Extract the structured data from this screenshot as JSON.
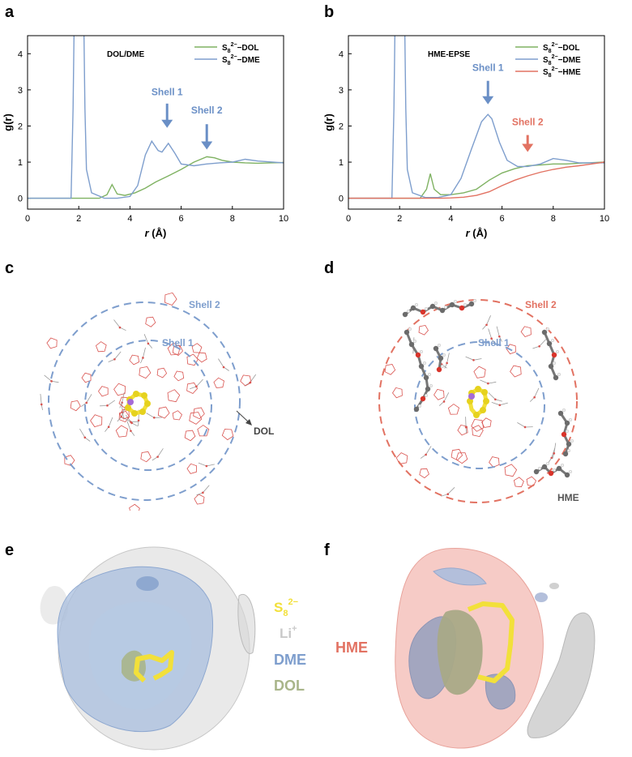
{
  "panel_labels": [
    "a",
    "b",
    "c",
    "d",
    "e",
    "f"
  ],
  "chart_data": [
    {
      "type": "line",
      "panel": "a",
      "inset_label": "DOL/DME",
      "xlabel_italic": "r",
      "xlabel_unit": "(Å)",
      "ylabel": "g(r)",
      "xlim": [
        0,
        10
      ],
      "ylim": [
        -0.3,
        4.5
      ],
      "xticks": [
        0,
        2,
        4,
        6,
        8,
        10
      ],
      "yticks": [
        0,
        1,
        2,
        3,
        4
      ],
      "legend_position": "top-right",
      "series": [
        {
          "name": "S8 2− −DOL",
          "legend_base": "S",
          "legend_sub": "8",
          "legend_sup": "2−",
          "legend_tail": "−DOL",
          "color": "#7fb262",
          "x": [
            0,
            2.8,
            3.1,
            3.3,
            3.5,
            3.8,
            4.2,
            4.6,
            5.0,
            5.5,
            6.0,
            6.5,
            7.0,
            7.3,
            7.6,
            8.0,
            8.5,
            9.0,
            9.5,
            10.0
          ],
          "y": [
            0,
            0,
            0.1,
            0.38,
            0.12,
            0.08,
            0.15,
            0.28,
            0.45,
            0.62,
            0.8,
            1.0,
            1.15,
            1.12,
            1.05,
            1.0,
            0.98,
            0.97,
            0.98,
            0.99
          ]
        },
        {
          "name": "S8 2− −DME",
          "legend_base": "S",
          "legend_sub": "8",
          "legend_sup": "2−",
          "legend_tail": "−DME",
          "color": "#7e9ecd",
          "x": [
            0,
            1.7,
            1.78,
            1.82,
            2.2,
            2.24,
            2.3,
            2.5,
            3.0,
            3.5,
            4.0,
            4.3,
            4.6,
            4.85,
            5.1,
            5.25,
            5.5,
            5.75,
            6.0,
            6.5,
            7.0,
            7.5,
            8.0,
            8.5,
            9.0,
            10.0
          ],
          "y": [
            0,
            0,
            2.5,
            4.8,
            4.8,
            2.5,
            0.8,
            0.15,
            0,
            0,
            0.05,
            0.35,
            1.2,
            1.58,
            1.32,
            1.28,
            1.52,
            1.25,
            0.95,
            0.9,
            0.95,
            0.98,
            1.0,
            1.08,
            1.03,
            0.98
          ]
        }
      ],
      "annotations": [
        {
          "text": "Shell 1",
          "x": 5.45,
          "y_text": 2.85,
          "y_arrow_top": 2.62,
          "y_arrow_bottom": 1.95,
          "color": "#6a8fc6"
        },
        {
          "text": "Shell 2",
          "x": 7.0,
          "y_text": 2.35,
          "y_arrow_top": 2.05,
          "y_arrow_bottom": 1.35,
          "color": "#6a8fc6"
        }
      ]
    },
    {
      "type": "line",
      "panel": "b",
      "inset_label": "HME-EPSE",
      "xlabel_italic": "r",
      "xlabel_unit": "(Å)",
      "ylabel": "g(r)",
      "xlim": [
        0,
        10
      ],
      "ylim": [
        -0.3,
        4.5
      ],
      "xticks": [
        0,
        2,
        4,
        6,
        8,
        10
      ],
      "yticks": [
        0,
        1,
        2,
        3,
        4
      ],
      "legend_position": "top-right",
      "series": [
        {
          "name": "S8 2− −DOL",
          "legend_base": "S",
          "legend_sub": "8",
          "legend_sup": "2−",
          "legend_tail": "−DOL",
          "color": "#7fb262",
          "x": [
            0,
            2.8,
            3.05,
            3.2,
            3.35,
            3.6,
            4.0,
            4.5,
            5.0,
            5.5,
            6.0,
            6.5,
            7.0,
            7.5,
            8.0,
            8.5,
            9.0,
            10.0
          ],
          "y": [
            0,
            0,
            0.25,
            0.68,
            0.25,
            0.1,
            0.1,
            0.15,
            0.25,
            0.5,
            0.7,
            0.82,
            0.9,
            0.92,
            0.95,
            0.95,
            0.97,
            1.0
          ]
        },
        {
          "name": "S8 2− −DME",
          "legend_base": "S",
          "legend_sub": "8",
          "legend_sup": "2−",
          "legend_tail": "−DME",
          "color": "#7e9ecd",
          "x": [
            0,
            1.7,
            1.78,
            1.82,
            2.2,
            2.24,
            2.3,
            2.5,
            3.0,
            3.5,
            4.0,
            4.4,
            4.8,
            5.2,
            5.45,
            5.6,
            5.9,
            6.2,
            6.6,
            7.0,
            7.5,
            8.0,
            8.5,
            9.0,
            10.0
          ],
          "y": [
            0,
            0,
            2.5,
            4.8,
            4.8,
            2.5,
            0.8,
            0.15,
            0.02,
            0.02,
            0.1,
            0.55,
            1.35,
            2.12,
            2.32,
            2.2,
            1.55,
            1.05,
            0.88,
            0.88,
            0.95,
            1.1,
            1.05,
            0.98,
            0.98
          ]
        },
        {
          "name": "S8 2− −HME",
          "legend_base": "S",
          "legend_sub": "8",
          "legend_sup": "2−",
          "legend_tail": "−HME",
          "color": "#e27262",
          "x": [
            0,
            3.6,
            4.0,
            4.5,
            5.0,
            5.5,
            6.0,
            6.5,
            7.0,
            7.5,
            8.0,
            8.5,
            9.0,
            9.5,
            10.0
          ],
          "y": [
            0,
            0,
            0.01,
            0.03,
            0.08,
            0.18,
            0.35,
            0.5,
            0.62,
            0.72,
            0.8,
            0.86,
            0.9,
            0.95,
            1.0
          ]
        }
      ],
      "annotations": [
        {
          "text": "Shell 1",
          "x": 5.45,
          "y_text": 3.52,
          "y_arrow_top": 3.25,
          "y_arrow_bottom": 2.6,
          "color": "#6a8fc6"
        },
        {
          "text": "Shell 2",
          "x": 7.0,
          "y_text": 2.02,
          "y_arrow_top": 1.75,
          "y_arrow_bottom": 1.28,
          "color": "#e27262"
        }
      ]
    }
  ],
  "snapshots": {
    "c": {
      "shell2": "Shell 2",
      "shell1": "Shell 1",
      "solvent_label": "DOL"
    },
    "d": {
      "shell2": "Shell 2",
      "shell1": "Shell 1",
      "solvent_label": "HME"
    }
  },
  "density_legend": {
    "s8_base": "S",
    "s8_sub": "8",
    "s8_sup": "2−",
    "li_base": "Li",
    "li_sup": "+",
    "dme": "DME",
    "dol": "DOL",
    "hme": "HME"
  },
  "colors": {
    "dol_green": "#7fb262",
    "dme_blue": "#7e9ecd",
    "hme_red": "#e27262",
    "s8_yellow": "#f2e03a",
    "li_gray": "#c9c9c9",
    "shell_blue": "#7e9ecd",
    "shell_red": "#e27262"
  }
}
